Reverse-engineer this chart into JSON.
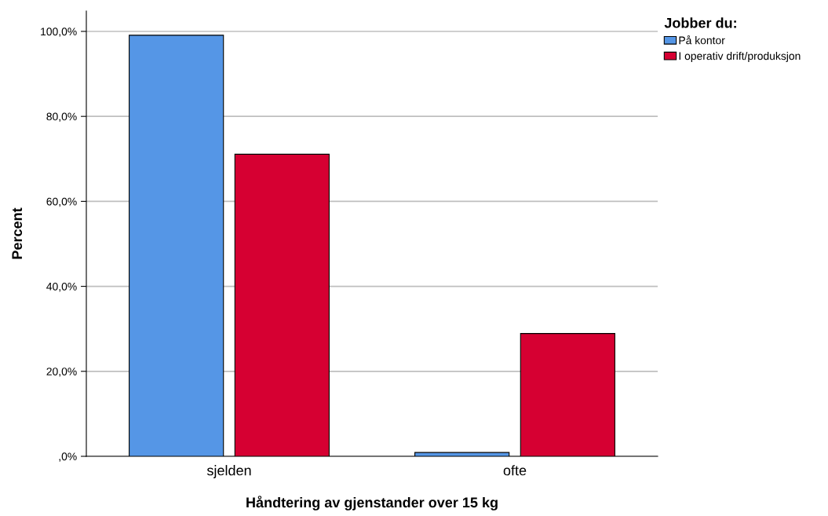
{
  "chart_data": {
    "type": "bar",
    "xlabel": "Håndtering av gjenstander over 15 kg",
    "ylabel": "Percent",
    "legend_title": "Jobber du:",
    "categories": [
      "sjelden",
      "ofte"
    ],
    "series": [
      {
        "name": "På kontor",
        "color": "#5596e6",
        "values": [
          99.1,
          0.9
        ]
      },
      {
        "name": "I operativ drift/produksjon",
        "color": "#d60032",
        "values": [
          71.1,
          28.9
        ]
      }
    ],
    "ylim": [
      0,
      104.8
    ],
    "yticks": [
      {
        "value": 0,
        "label": ",0%"
      },
      {
        "value": 20,
        "label": "20,0%"
      },
      {
        "value": 40,
        "label": "40,0%"
      },
      {
        "value": 60,
        "label": "60,0%"
      },
      {
        "value": 80,
        "label": "80,0%"
      },
      {
        "value": 100,
        "label": "100,0%"
      }
    ],
    "grid": "y",
    "legend": "top right"
  }
}
